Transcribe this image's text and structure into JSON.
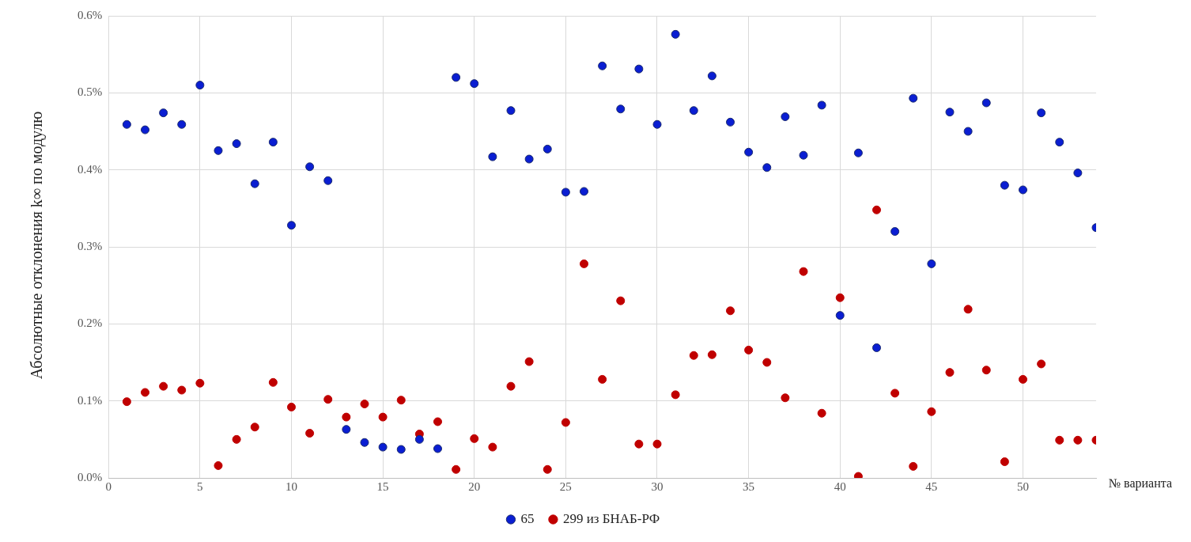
{
  "chart_data": {
    "type": "scatter",
    "xlabel": "№ варианта",
    "ylabel": "Абсолютные отклонения k∞ по модулю",
    "x": [
      1,
      2,
      3,
      4,
      5,
      6,
      7,
      8,
      9,
      10,
      11,
      12,
      13,
      14,
      15,
      16,
      17,
      18,
      19,
      20,
      21,
      22,
      23,
      24,
      25,
      26,
      27,
      28,
      29,
      30,
      31,
      32,
      33,
      34,
      35,
      36,
      37,
      38,
      39,
      40,
      41,
      42,
      43,
      44,
      45,
      46,
      47,
      48,
      49,
      50,
      51,
      52,
      53,
      54
    ],
    "series": [
      {
        "name": "65",
        "color": "#0a1ed2",
        "values": [
          0.459,
          0.452,
          0.474,
          0.459,
          0.51,
          0.425,
          0.434,
          0.382,
          0.436,
          0.328,
          0.404,
          0.386,
          0.063,
          0.046,
          0.04,
          0.037,
          0.05,
          0.038,
          0.52,
          0.512,
          0.417,
          0.477,
          0.414,
          0.427,
          0.371,
          0.372,
          0.535,
          0.479,
          0.531,
          0.459,
          0.576,
          0.477,
          0.522,
          0.462,
          0.423,
          0.403,
          0.469,
          0.419,
          0.484,
          0.211,
          0.422,
          0.169,
          0.32,
          0.493,
          0.278,
          0.475,
          0.45,
          0.487,
          0.38,
          0.374,
          0.474,
          0.436,
          0.396,
          0.325
        ]
      },
      {
        "name": "299 из БНАБ-РФ",
        "color": "#c00000",
        "values": [
          0.099,
          0.111,
          0.119,
          0.114,
          0.123,
          0.016,
          0.05,
          0.066,
          0.124,
          0.092,
          0.058,
          0.102,
          0.079,
          0.096,
          0.079,
          0.101,
          0.057,
          0.073,
          0.011,
          0.051,
          0.04,
          0.119,
          0.151,
          0.011,
          0.072,
          0.278,
          0.128,
          0.23,
          0.044,
          0.044,
          0.108,
          0.159,
          0.16,
          0.217,
          0.166,
          0.15,
          0.104,
          0.268,
          0.084,
          0.234,
          0.002,
          0.348,
          0.11,
          0.015,
          0.086,
          0.137,
          0.219,
          0.14,
          0.021,
          0.128,
          0.148,
          0.049,
          0.049,
          0.049
        ]
      }
    ],
    "xlim": [
      0,
      54
    ],
    "xticks": [
      0,
      5,
      10,
      15,
      20,
      25,
      30,
      35,
      40,
      45,
      50
    ],
    "ylim": [
      0,
      0.6
    ],
    "yticks": [
      {
        "value": 0,
        "label": "0.0%"
      },
      {
        "value": 0.1,
        "label": "0.1%"
      },
      {
        "value": 0.2,
        "label": "0.2%"
      },
      {
        "value": 0.3,
        "label": "0.3%"
      },
      {
        "value": 0.4,
        "label": "0.4%"
      },
      {
        "value": 0.5,
        "label": "0.5%"
      },
      {
        "value": 0.6,
        "label": "0.6%"
      }
    ],
    "grid": true,
    "legend": "bottom",
    "marker": "circle"
  }
}
